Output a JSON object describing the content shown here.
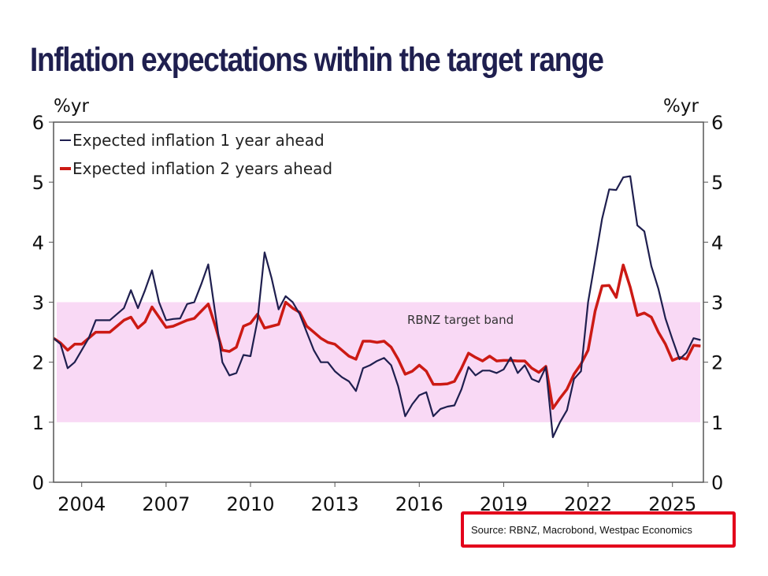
{
  "chart_data": {
    "type": "line",
    "title": "Inflation expectations within the target range",
    "ylabel_left": "%yr",
    "ylabel_right": "%yr",
    "ylim": [
      0,
      6
    ],
    "yticks": [
      0,
      1,
      2,
      3,
      4,
      5,
      6
    ],
    "xlim": [
      2003,
      2026.1
    ],
    "xticks": [
      2004,
      2007,
      2010,
      2013,
      2016,
      2019,
      2022,
      2025
    ],
    "grid": false,
    "legend_position": "top-left",
    "band": {
      "label": "RBNZ target band",
      "from": 1,
      "to": 3,
      "color": "#f9d9f5"
    },
    "x": [
      2003,
      2003.25,
      2003.5,
      2003.75,
      2004,
      2004.25,
      2004.5,
      2004.75,
      2005,
      2005.25,
      2005.5,
      2005.75,
      2006,
      2006.25,
      2006.5,
      2006.75,
      2007,
      2007.25,
      2007.5,
      2007.75,
      2008,
      2008.25,
      2008.5,
      2008.75,
      2009,
      2009.25,
      2009.5,
      2009.75,
      2010,
      2010.25,
      2010.5,
      2010.75,
      2011,
      2011.25,
      2011.5,
      2011.75,
      2012,
      2012.25,
      2012.5,
      2012.75,
      2013,
      2013.25,
      2013.5,
      2013.75,
      2014,
      2014.25,
      2014.5,
      2014.75,
      2015,
      2015.25,
      2015.5,
      2015.75,
      2016,
      2016.25,
      2016.5,
      2016.75,
      2017,
      2017.25,
      2017.5,
      2017.75,
      2018,
      2018.25,
      2018.5,
      2018.75,
      2019,
      2019.25,
      2019.5,
      2019.75,
      2020,
      2020.25,
      2020.5,
      2020.75,
      2021,
      2021.25,
      2021.5,
      2021.75,
      2022,
      2022.25,
      2022.5,
      2022.75,
      2023,
      2023.25,
      2023.5,
      2023.75,
      2024,
      2024.25,
      2024.5,
      2024.75,
      2025,
      2025.25,
      2025.5,
      2025.75,
      2026
    ],
    "series": [
      {
        "name": "Expected inflation 1 year ahead",
        "color": "#1f1f4f",
        "values": [
          2.4,
          2.3,
          1.9,
          2.0,
          2.2,
          2.4,
          2.7,
          2.7,
          2.7,
          2.8,
          2.9,
          3.2,
          2.9,
          3.2,
          3.53,
          3.0,
          2.7,
          2.72,
          2.73,
          2.97,
          3.0,
          3.3,
          3.63,
          2.8,
          2.0,
          1.78,
          1.82,
          2.12,
          2.1,
          2.7,
          3.83,
          3.4,
          2.88,
          3.1,
          3.0,
          2.8,
          2.5,
          2.2,
          2.0,
          2.0,
          1.85,
          1.75,
          1.68,
          1.52,
          1.9,
          1.95,
          2.02,
          2.07,
          1.95,
          1.6,
          1.1,
          1.3,
          1.45,
          1.5,
          1.1,
          1.22,
          1.26,
          1.28,
          1.55,
          1.92,
          1.78,
          1.86,
          1.86,
          1.82,
          1.88,
          2.08,
          1.82,
          1.95,
          1.72,
          1.67,
          1.92,
          0.75,
          1.0,
          1.2,
          1.72,
          1.85,
          3.0,
          3.69,
          4.39,
          4.88,
          4.87,
          5.08,
          5.1,
          4.28,
          4.18,
          3.6,
          3.22,
          2.73,
          2.38,
          2.05,
          2.16,
          2.4,
          2.37
        ]
      },
      {
        "name": "Expected inflation 2 years ahead",
        "color": "#cc1a14",
        "values": [
          2.4,
          2.32,
          2.2,
          2.3,
          2.3,
          2.4,
          2.5,
          2.5,
          2.5,
          2.6,
          2.7,
          2.75,
          2.57,
          2.67,
          2.92,
          2.75,
          2.58,
          2.6,
          2.65,
          2.7,
          2.73,
          2.85,
          2.97,
          2.6,
          2.2,
          2.18,
          2.25,
          2.6,
          2.65,
          2.8,
          2.57,
          2.6,
          2.63,
          3.0,
          2.9,
          2.83,
          2.6,
          2.5,
          2.4,
          2.33,
          2.3,
          2.2,
          2.1,
          2.05,
          2.35,
          2.35,
          2.33,
          2.35,
          2.25,
          2.05,
          1.8,
          1.85,
          1.95,
          1.85,
          1.63,
          1.63,
          1.64,
          1.68,
          1.9,
          2.15,
          2.08,
          2.02,
          2.1,
          2.02,
          2.03,
          2.03,
          2.02,
          2.02,
          1.9,
          1.83,
          1.93,
          1.23,
          1.4,
          1.55,
          1.8,
          1.97,
          2.2,
          2.85,
          3.27,
          3.28,
          3.08,
          3.62,
          3.25,
          2.78,
          2.82,
          2.75,
          2.5,
          2.3,
          2.03,
          2.08,
          2.05,
          2.28,
          2.27
        ]
      }
    ],
    "source": "Source: RBNZ, Macrobond, Westpac Economics"
  }
}
